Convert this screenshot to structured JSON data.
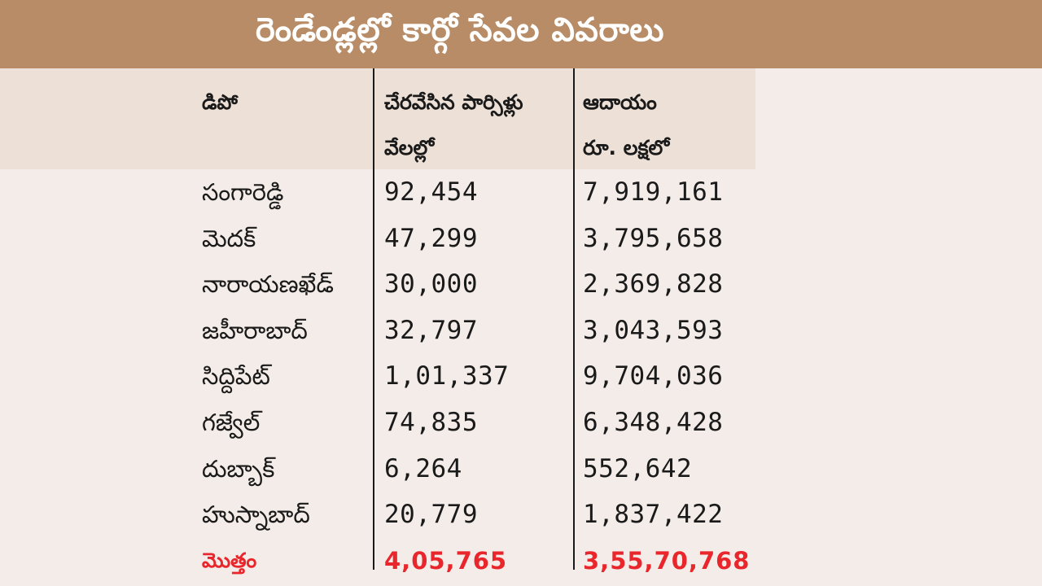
{
  "title": "రెండేండ్లల్లో కార్గో సేవల వివరాలు",
  "colors": {
    "title_band": "#b78c66",
    "header_band": "#ede0d7",
    "background": "#f4ece8",
    "total_text": "#e8262b"
  },
  "header": {
    "depot": [
      "డిపో"
    ],
    "parcels": [
      "చేరవేసిన పార్సిళ్లు",
      "వేలల్లో"
    ],
    "revenue": [
      "ఆదాయం",
      "రూ. లక్షలో"
    ]
  },
  "rows": [
    {
      "depot": "సంగారెడ్డి",
      "parcels": "92,454",
      "revenue": "7,919,161"
    },
    {
      "depot": "మెదక్",
      "parcels": "47,299",
      "revenue": "3,795,658"
    },
    {
      "depot": "నారాయణఖేడ్",
      "parcels": "30,000",
      "revenue": "2,369,828"
    },
    {
      "depot": "జహీరాబాద్",
      "parcels": "32,797",
      "revenue": "3,043,593"
    },
    {
      "depot": "సిద్దిపేట్",
      "parcels": "1,01,337",
      "revenue": "9,704,036"
    },
    {
      "depot": "గజ్వేల్",
      "parcels": "74,835",
      "revenue": "6,348,428"
    },
    {
      "depot": "దుబ్బాక్",
      "parcels": "6,264",
      "revenue": "552,642"
    },
    {
      "depot": "హుస్నాబాద్",
      "parcels": "20,779",
      "revenue": "1,837,422"
    }
  ],
  "total": {
    "depot": "మొత్తం",
    "parcels": "4,05,765",
    "revenue": "3,55,70,768"
  }
}
